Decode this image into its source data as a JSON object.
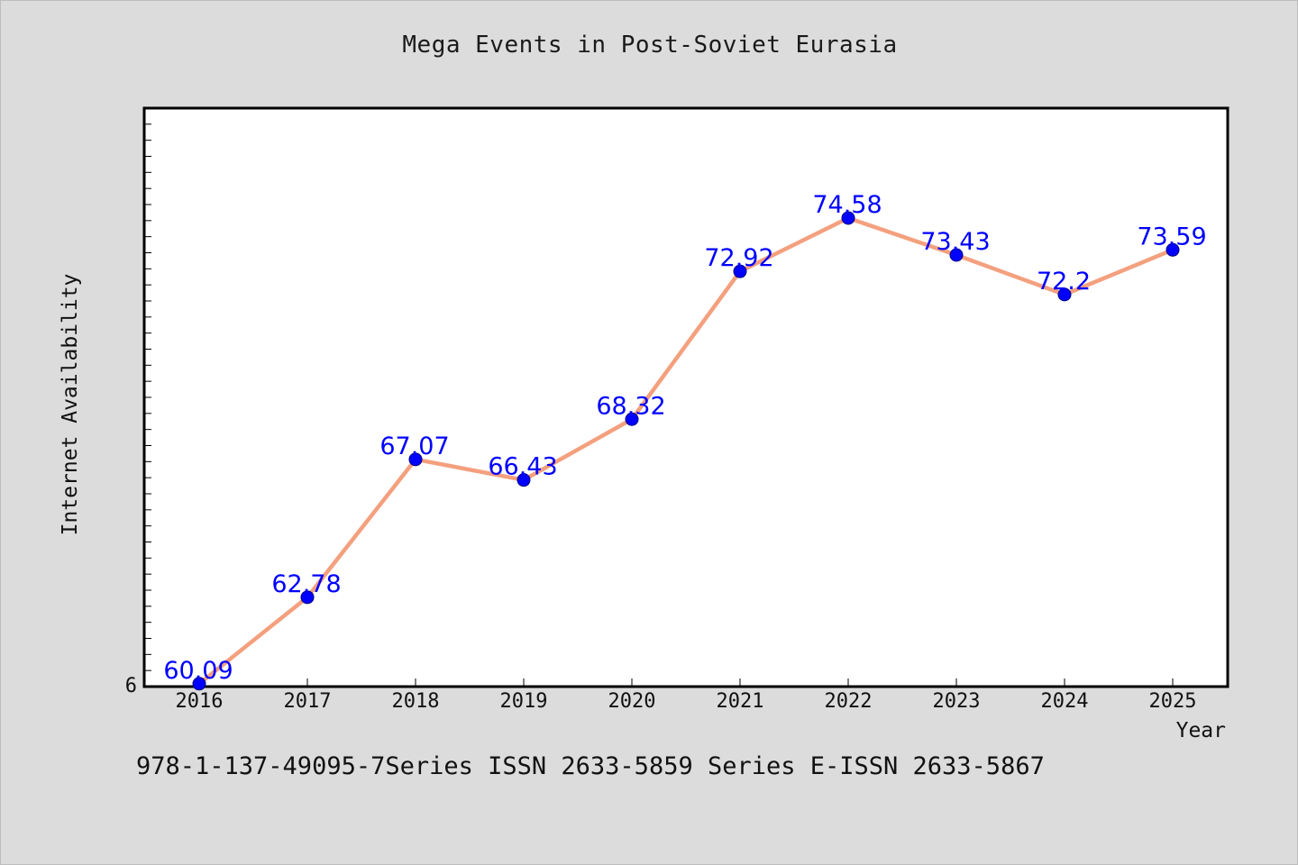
{
  "chart_data": {
    "type": "line",
    "title": "Mega Events in Post-Soviet Eurasia",
    "xlabel": "Year",
    "ylabel": "Internet Availability",
    "categories": [
      "2016",
      "2017",
      "2018",
      "2019",
      "2020",
      "2021",
      "2022",
      "2023",
      "2024",
      "2025"
    ],
    "series": [
      {
        "values": [
          60.09,
          62.78,
          67.07,
          66.43,
          68.32,
          72.92,
          74.58,
          73.43,
          72.2,
          73.59
        ]
      }
    ],
    "data_labels": [
      "60.09",
      "62.78",
      "67.07",
      "66.43",
      "68.32",
      "72.92",
      "74.58",
      "73.43",
      "72.2",
      "73.59"
    ],
    "ylim": [
      60,
      78
    ],
    "y_tick_labels": [
      "6"
    ],
    "grid": false,
    "legend": "none",
    "colors": {
      "line": "#f4a07e",
      "marker": "#0000ff",
      "label": "#0000ff",
      "plot_background": "#ffffff",
      "figure_background": "#dcdcdc"
    }
  },
  "footer": {
    "text": "978-1-137-49095-7Series ISSN 2633-5859 Series E-ISSN 2633-5867"
  }
}
